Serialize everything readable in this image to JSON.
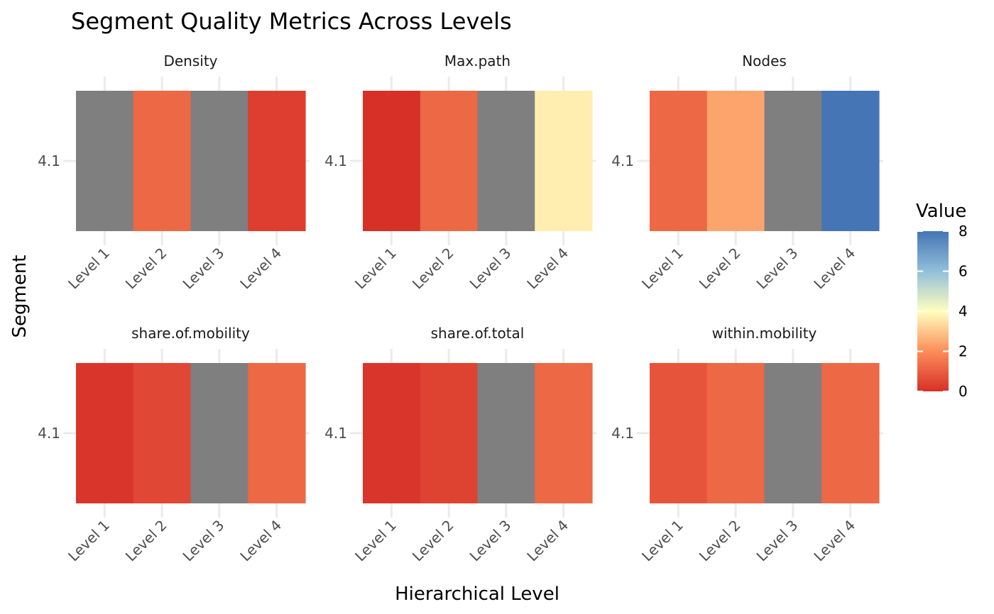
{
  "chart_data": {
    "type": "heatmap",
    "title": "Segment Quality Metrics Across Levels",
    "xlabel": "Hierarchical Level",
    "ylabel": "Segment",
    "categories": [
      "Level 1",
      "Level 2",
      "Level 3",
      "Level 4"
    ],
    "segments": [
      "4.1"
    ],
    "panels": [
      {
        "name": "Density",
        "values": [
          null,
          1.2,
          null,
          0.3
        ]
      },
      {
        "name": "Max.path",
        "values": [
          0,
          1.2,
          null,
          3.7
        ]
      },
      {
        "name": "Nodes",
        "values": [
          1.2,
          2.4,
          null,
          8
        ]
      },
      {
        "name": "share.of.mobility",
        "values": [
          0.1,
          0.5,
          null,
          1.2
        ]
      },
      {
        "name": "share.of.total",
        "values": [
          0.1,
          0.4,
          null,
          1.2
        ]
      },
      {
        "name": "within.mobility",
        "values": [
          0.8,
          1.2,
          null,
          1.2
        ]
      }
    ],
    "legend": {
      "title": "Value",
      "range": [
        0,
        8
      ],
      "ticks": [
        0,
        2,
        4,
        6,
        8
      ],
      "position": "right"
    },
    "colors": {
      "low": "#d73027",
      "mid": "#ffffbf",
      "high": "#4575b4",
      "na": "#7f7f7f"
    },
    "grid": true
  }
}
